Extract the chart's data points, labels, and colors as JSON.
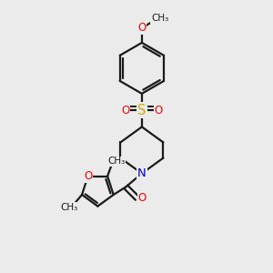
{
  "bg_color": "#ebebeb",
  "bond_color": "#1a1a1a",
  "bond_width": 1.6,
  "atom_colors": {
    "O": "#ff0000",
    "N": "#0000cc",
    "S": "#ccaa00",
    "C": "#1a1a1a"
  },
  "font_size": 8.5,
  "fig_size": [
    3.0,
    3.0
  ],
  "dpi": 100,
  "xlim": [
    0,
    10
  ],
  "ylim": [
    0,
    10
  ]
}
